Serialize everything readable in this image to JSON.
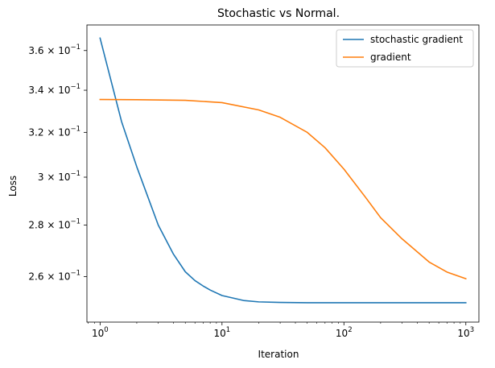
{
  "chart_data": {
    "type": "line",
    "title": "Stochastic vs Normal.",
    "xlabel": "Iteration",
    "ylabel": "Loss",
    "xscale": "log",
    "yscale": "log",
    "xlim": [
      0.78,
      1280
    ],
    "ylim": [
      0.2435,
      0.3735
    ],
    "x_ticks": [
      {
        "value": 1,
        "base": "10",
        "exp": "0"
      },
      {
        "value": 10,
        "base": "10",
        "exp": "1"
      },
      {
        "value": 100,
        "base": "10",
        "exp": "2"
      },
      {
        "value": 1000,
        "base": "10",
        "exp": "3"
      }
    ],
    "y_ticks": [
      {
        "value": 0.26,
        "mant": "2.6",
        "exp": "−1"
      },
      {
        "value": 0.28,
        "mant": "2.8",
        "exp": "−1"
      },
      {
        "value": 0.3,
        "mant": "3",
        "exp": "−1"
      },
      {
        "value": 0.32,
        "mant": "3.2",
        "exp": "−1"
      },
      {
        "value": 0.34,
        "mant": "3.4",
        "exp": "−1"
      },
      {
        "value": 0.36,
        "mant": "3.6",
        "exp": "−1"
      }
    ],
    "legend": {
      "position": "top-right"
    },
    "grid": false,
    "series": [
      {
        "name": "stochastic gradient",
        "color": "#1f77b4",
        "x": [
          1,
          1.5,
          2,
          3,
          4,
          5,
          6,
          7,
          8,
          10,
          12,
          15,
          20,
          30,
          50,
          100,
          1000
        ],
        "y": [
          0.3665,
          0.325,
          0.3045,
          0.28,
          0.2685,
          0.2618,
          0.2585,
          0.2565,
          0.255,
          0.253,
          0.2522,
          0.2512,
          0.2507,
          0.2505,
          0.2504,
          0.2504,
          0.2504
        ]
      },
      {
        "name": "gradient",
        "color": "#ff7f0e",
        "x": [
          1,
          2,
          5,
          10,
          20,
          30,
          50,
          70,
          100,
          150,
          200,
          300,
          500,
          700,
          1000
        ],
        "y": [
          0.3355,
          0.3354,
          0.3351,
          0.334,
          0.3305,
          0.327,
          0.32,
          0.313,
          0.3035,
          0.2915,
          0.283,
          0.2745,
          0.2655,
          0.2617,
          0.2592
        ]
      }
    ]
  }
}
